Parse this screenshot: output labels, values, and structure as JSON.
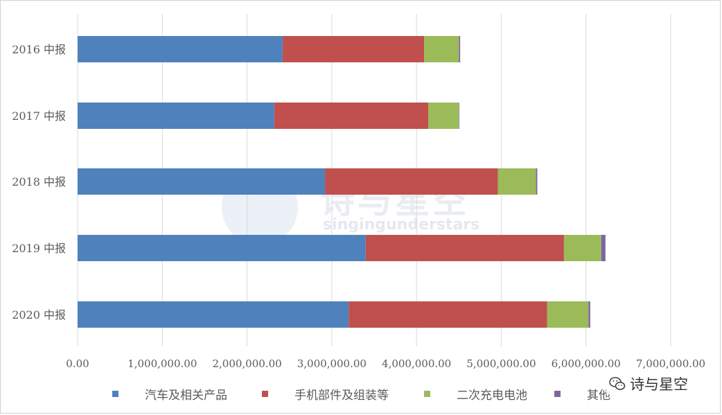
{
  "chart_data": {
    "type": "bar",
    "orientation": "horizontal",
    "stacked": true,
    "categories": [
      "2016 中报",
      "2017 中报",
      "2018 中报",
      "2019 中报",
      "2020 中报"
    ],
    "series": [
      {
        "name": "汽车及相关产品",
        "color": "#4f81bd",
        "values": [
          2420000,
          2320000,
          2920000,
          3400000,
          3200000
        ]
      },
      {
        "name": "手机部件及组装等",
        "color": "#c0504d",
        "values": [
          1670000,
          1820000,
          2040000,
          2340000,
          2340000
        ]
      },
      {
        "name": "二次充电电池",
        "color": "#9bbb59",
        "values": [
          410000,
          360000,
          450000,
          440000,
          490000
        ]
      },
      {
        "name": "其他",
        "color": "#8064a2",
        "values": [
          15000,
          5000,
          15000,
          50000,
          20000
        ]
      }
    ],
    "xlim": [
      0,
      7000000
    ],
    "xticks": [
      0,
      1000000,
      2000000,
      3000000,
      4000000,
      5000000,
      6000000,
      7000000
    ],
    "xtick_labels": [
      "0.00",
      "1,000,000.00",
      "2,000,000.00",
      "3,000,000.00",
      "4,000,000.00",
      "5,000,000.00",
      "6,000,000.00",
      "7,000,000.00"
    ],
    "grid": "vertical",
    "legend_position": "bottom"
  },
  "watermark": {
    "title": "诗与星空",
    "subtitle": "singingunderstars"
  },
  "badge": {
    "icon": "wechat-icon",
    "label": "诗与星空"
  }
}
